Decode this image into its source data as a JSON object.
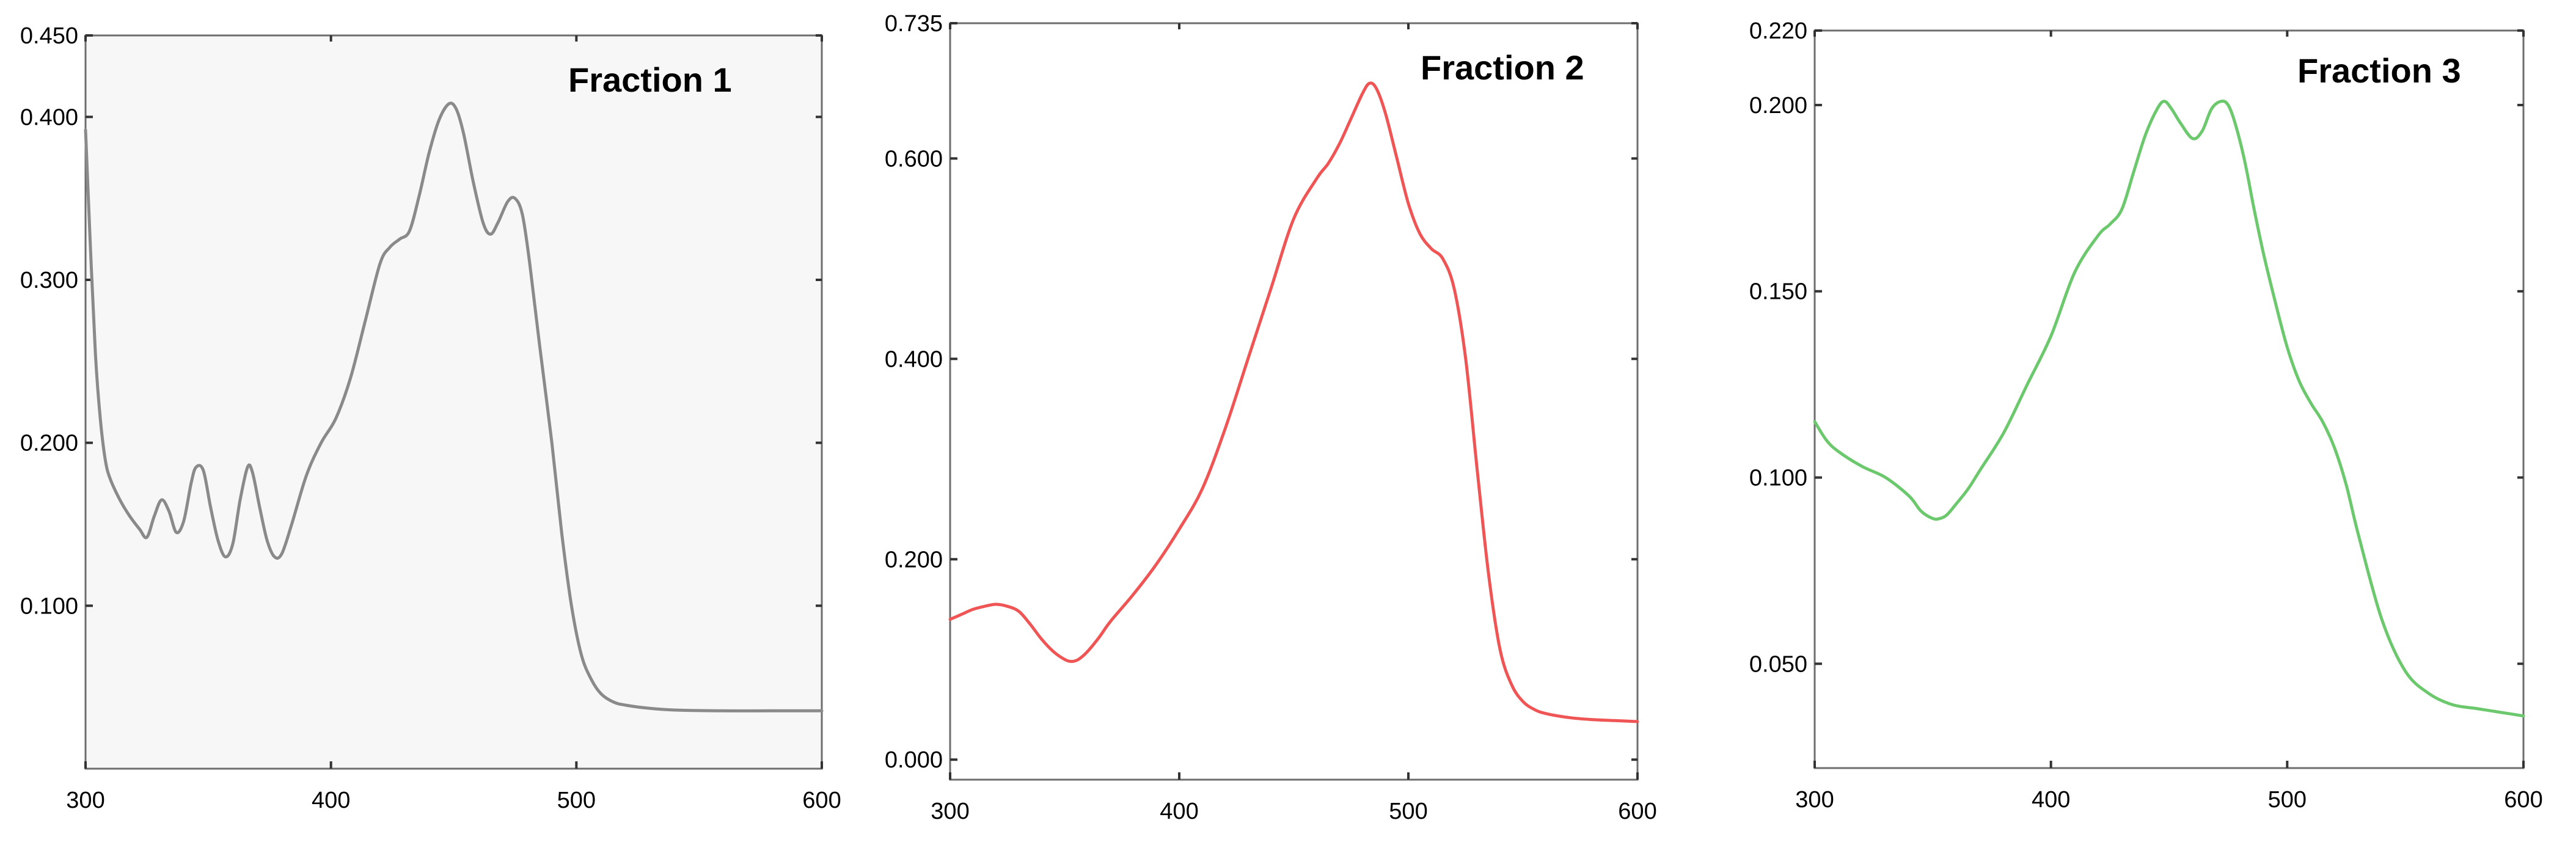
{
  "chart_data": [
    {
      "type": "line",
      "title": "Fraction 1",
      "xlabel": "",
      "ylabel": "",
      "xlim": [
        300,
        600
      ],
      "ylim": [
        0,
        0.45
      ],
      "xticks": [
        "300",
        "400",
        "500",
        "600"
      ],
      "yticks": [
        {
          "value": 0.1,
          "label": "0.100"
        },
        {
          "value": 0.2,
          "label": "0.200"
        },
        {
          "value": 0.3,
          "label": "0.300"
        },
        {
          "value": 0.4,
          "label": "0.400"
        },
        {
          "value": 0.45,
          "label": "0.450"
        }
      ],
      "color": "#8a8a8a",
      "background": "#f7f7f7",
      "grid": false,
      "series": [
        {
          "x": [
            300,
            302,
            304,
            306,
            308,
            310,
            314,
            318,
            322,
            325,
            328,
            331,
            334,
            337,
            340,
            343,
            345,
            348,
            351,
            354,
            357,
            360,
            363,
            366,
            368,
            371,
            374,
            377,
            380,
            384,
            390,
            396,
            402,
            408,
            414,
            420,
            424,
            428,
            432,
            436,
            440,
            444,
            448,
            451,
            454,
            458,
            462,
            465,
            468,
            472,
            475,
            478,
            481,
            485,
            490,
            494,
            498,
            502,
            506,
            510,
            515,
            520,
            530,
            540,
            560,
            580,
            600
          ],
          "y": [
            0.392,
            0.32,
            0.255,
            0.215,
            0.19,
            0.178,
            0.165,
            0.155,
            0.147,
            0.142,
            0.155,
            0.165,
            0.158,
            0.145,
            0.152,
            0.175,
            0.185,
            0.183,
            0.16,
            0.14,
            0.13,
            0.138,
            0.165,
            0.185,
            0.182,
            0.16,
            0.14,
            0.13,
            0.132,
            0.15,
            0.18,
            0.2,
            0.215,
            0.24,
            0.275,
            0.31,
            0.32,
            0.325,
            0.33,
            0.352,
            0.378,
            0.398,
            0.408,
            0.405,
            0.39,
            0.36,
            0.335,
            0.328,
            0.335,
            0.348,
            0.35,
            0.34,
            0.31,
            0.26,
            0.2,
            0.145,
            0.1,
            0.07,
            0.055,
            0.046,
            0.041,
            0.039,
            0.037,
            0.036,
            0.0355,
            0.0355,
            0.0355
          ]
        }
      ]
    },
    {
      "type": "line",
      "title": "Fraction 2",
      "xlabel": "",
      "ylabel": "",
      "xlim": [
        300,
        600
      ],
      "ylim": [
        -0.02,
        0.735
      ],
      "xticks": [
        "300",
        "400",
        "500",
        "600"
      ],
      "yticks": [
        {
          "value": 0.0,
          "label": "0.000"
        },
        {
          "value": 0.2,
          "label": "0.200"
        },
        {
          "value": 0.4,
          "label": "0.400"
        },
        {
          "value": 0.6,
          "label": "0.600"
        },
        {
          "value": 0.735,
          "label": "0.735"
        }
      ],
      "color": "#f05555",
      "background": "#ffffff",
      "grid": false,
      "series": [
        {
          "x": [
            300,
            305,
            310,
            315,
            320,
            325,
            330,
            335,
            340,
            345,
            350,
            353,
            356,
            360,
            365,
            370,
            380,
            390,
            400,
            410,
            420,
            430,
            440,
            450,
            460,
            465,
            470,
            475,
            480,
            483,
            486,
            490,
            495,
            500,
            505,
            510,
            515,
            520,
            525,
            530,
            535,
            540,
            545,
            550,
            555,
            560,
            570,
            580,
            590,
            600
          ],
          "y": [
            0.14,
            0.145,
            0.15,
            0.153,
            0.155,
            0.153,
            0.148,
            0.135,
            0.12,
            0.108,
            0.1,
            0.098,
            0.1,
            0.108,
            0.122,
            0.138,
            0.165,
            0.195,
            0.23,
            0.27,
            0.33,
            0.4,
            0.47,
            0.54,
            0.58,
            0.595,
            0.615,
            0.64,
            0.665,
            0.675,
            0.67,
            0.645,
            0.6,
            0.555,
            0.525,
            0.51,
            0.5,
            0.47,
            0.4,
            0.29,
            0.185,
            0.11,
            0.075,
            0.058,
            0.05,
            0.046,
            0.042,
            0.04,
            0.039,
            0.038
          ]
        }
      ]
    },
    {
      "type": "line",
      "title": "Fraction 3",
      "xlabel": "",
      "ylabel": "",
      "xlim": [
        300,
        600
      ],
      "ylim": [
        0.022,
        0.22
      ],
      "xticks": [
        "300",
        "400",
        "500",
        "600"
      ],
      "yticks": [
        {
          "value": 0.05,
          "label": "0.050"
        },
        {
          "value": 0.1,
          "label": "0.100"
        },
        {
          "value": 0.15,
          "label": "0.150"
        },
        {
          "value": 0.2,
          "label": "0.200"
        },
        {
          "value": 0.22,
          "label": "0.220"
        }
      ],
      "color": "#6cc86c",
      "background": "#ffffff",
      "grid": false,
      "series": [
        {
          "x": [
            300,
            305,
            310,
            320,
            330,
            340,
            345,
            350,
            353,
            356,
            360,
            365,
            370,
            380,
            390,
            400,
            410,
            420,
            425,
            430,
            435,
            440,
            445,
            448,
            451,
            455,
            460,
            464,
            468,
            472,
            475,
            478,
            482,
            486,
            490,
            495,
            500,
            505,
            510,
            515,
            520,
            525,
            530,
            540,
            550,
            560,
            570,
            580,
            590,
            600
          ],
          "y": [
            0.115,
            0.11,
            0.107,
            0.103,
            0.1,
            0.095,
            0.091,
            0.089,
            0.089,
            0.09,
            0.093,
            0.097,
            0.102,
            0.112,
            0.125,
            0.138,
            0.155,
            0.165,
            0.168,
            0.172,
            0.182,
            0.192,
            0.199,
            0.201,
            0.199,
            0.195,
            0.191,
            0.193,
            0.199,
            0.201,
            0.2,
            0.195,
            0.185,
            0.172,
            0.16,
            0.147,
            0.135,
            0.126,
            0.12,
            0.115,
            0.108,
            0.098,
            0.085,
            0.062,
            0.048,
            0.042,
            0.039,
            0.038,
            0.037,
            0.036
          ]
        }
      ]
    }
  ]
}
